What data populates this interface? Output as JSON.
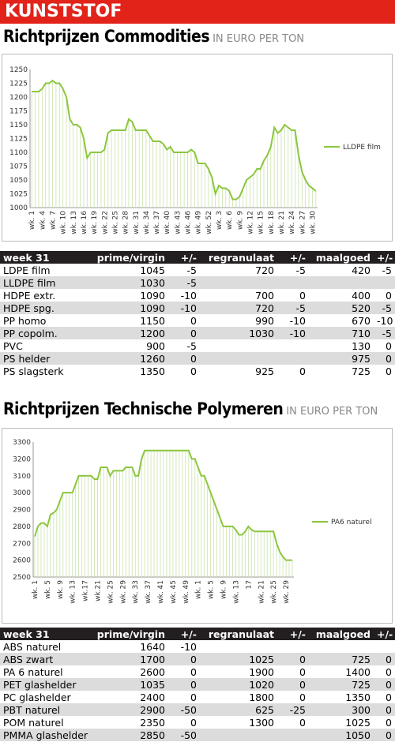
{
  "header": {
    "title": "KUNSTSTOF"
  },
  "sections": [
    {
      "title": "Richtprijzen Commodities",
      "unit": "IN EURO PER TON"
    },
    {
      "title": "Richtprijzen Technische Polymeren",
      "unit": "IN EURO PER TON"
    }
  ],
  "chart_data": [
    {
      "type": "line",
      "legend": "right",
      "grid": false,
      "categories": [
        "wk. 1",
        null,
        null,
        "wk. 4",
        null,
        null,
        "wk. 7",
        null,
        null,
        "wk. 10",
        null,
        null,
        "wk. 13",
        null,
        null,
        "wk. 16",
        null,
        null,
        "wk. 19",
        null,
        null,
        "wk. 22",
        null,
        null,
        "wk. 25",
        null,
        null,
        "wk. 28",
        null,
        null,
        "wk. 31",
        null,
        null,
        "wk. 34",
        null,
        null,
        "wk. 37",
        null,
        null,
        "wk. 40",
        null,
        null,
        "wk. 43",
        null,
        null,
        "wk. 46",
        null,
        null,
        "wk. 49",
        null,
        null,
        "wk. 52",
        null,
        null,
        "wk. 3",
        null,
        null,
        "wk. 6",
        null,
        null,
        "wk. 9",
        null,
        null,
        "wk. 12",
        null,
        null,
        "wk. 15",
        null,
        null,
        "wk. 18",
        null,
        null,
        "wk. 21",
        null,
        null,
        "wk. 24",
        null,
        null,
        "wk. 27",
        null,
        null,
        "wk. 30",
        null
      ],
      "series": [
        {
          "name": "LLDPE film",
          "color": "#8cc63e",
          "values": [
            1210,
            1210,
            1210,
            1215,
            1225,
            1225,
            1230,
            1225,
            1225,
            1215,
            1200,
            1160,
            1150,
            1150,
            1145,
            1125,
            1090,
            1100,
            1100,
            1100,
            1100,
            1105,
            1135,
            1140,
            1140,
            1140,
            1140,
            1140,
            1160,
            1155,
            1140,
            1140,
            1140,
            1140,
            1130,
            1120,
            1120,
            1120,
            1115,
            1105,
            1110,
            1100,
            1100,
            1100,
            1100,
            1100,
            1105,
            1100,
            1080,
            1080,
            1080,
            1070,
            1055,
            1025,
            1040,
            1035,
            1035,
            1030,
            1015,
            1015,
            1020,
            1035,
            1050,
            1055,
            1060,
            1070,
            1070,
            1085,
            1095,
            1110,
            1145,
            1135,
            1140,
            1150,
            1145,
            1140,
            1140,
            1095,
            1065,
            1050,
            1040,
            1035,
            1030
          ]
        }
      ],
      "ylim": [
        1000,
        1250
      ],
      "yticks": [
        1000,
        1025,
        1050,
        1075,
        1100,
        1125,
        1150,
        1175,
        1200,
        1225,
        1250
      ]
    },
    {
      "type": "line",
      "legend": "right",
      "grid": false,
      "categories": [
        "wk. 1",
        null,
        null,
        null,
        "wk. 5",
        null,
        null,
        null,
        "wk. 9",
        null,
        null,
        null,
        "wk. 13",
        null,
        null,
        null,
        "wk.17",
        null,
        null,
        null,
        "wk.21",
        null,
        null,
        null,
        "wk. 25",
        null,
        null,
        null,
        "wk. 29",
        null,
        null,
        null,
        "wk. 33",
        null,
        null,
        null,
        "wk. 37",
        null,
        null,
        null,
        "wk. 41",
        null,
        null,
        null,
        "wk. 45",
        null,
        null,
        null,
        "wk. 49",
        null,
        null,
        null,
        "wk. 1",
        null,
        null,
        null,
        "wk. 5",
        null,
        null,
        null,
        "wk. 9",
        null,
        null,
        null,
        "wk. 13",
        null,
        null,
        null,
        "17",
        null,
        null,
        null,
        "wk. 21",
        null,
        null,
        null,
        "wk. 25",
        null,
        null,
        null,
        "wk. 29",
        null,
        null
      ],
      "series": [
        {
          "name": "PA6 naturel",
          "color": "#8cc63e",
          "values": [
            2740,
            2800,
            2820,
            2820,
            2800,
            2870,
            2880,
            2900,
            2950,
            3000,
            3000,
            3000,
            3000,
            3050,
            3100,
            3100,
            3100,
            3100,
            3100,
            3080,
            3080,
            3150,
            3150,
            3150,
            3100,
            3130,
            3130,
            3130,
            3130,
            3150,
            3150,
            3150,
            3100,
            3100,
            3200,
            3250,
            3250,
            3250,
            3250,
            3250,
            3250,
            3250,
            3250,
            3250,
            3250,
            3250,
            3250,
            3250,
            3250,
            3250,
            3200,
            3200,
            3150,
            3100,
            3100,
            3050,
            3000,
            2950,
            2900,
            2850,
            2800,
            2800,
            2800,
            2800,
            2780,
            2750,
            2750,
            2770,
            2800,
            2780,
            2770,
            2770,
            2770,
            2770,
            2770,
            2770,
            2770,
            2700,
            2650,
            2620,
            2600,
            2600,
            2600
          ]
        }
      ],
      "ylim": [
        2500,
        3300
      ],
      "yticks": [
        2500,
        2600,
        2700,
        2800,
        2900,
        3000,
        3100,
        3200,
        3300
      ]
    }
  ],
  "tables": [
    {
      "columns": [
        "week 31",
        "prime/virgin",
        "+/-",
        "regranulaat",
        "+/-",
        "maalgoed",
        "+/-"
      ],
      "rows": [
        [
          "LDPE film",
          1045,
          -5,
          720,
          -5,
          420,
          -5
        ],
        [
          "LLDPE film",
          1030,
          -5,
          null,
          null,
          null,
          null
        ],
        [
          "HDPE extr.",
          1090,
          -10,
          700,
          0,
          400,
          0
        ],
        [
          "HDPE spg.",
          1090,
          -10,
          720,
          -5,
          520,
          -5
        ],
        [
          "PP homo",
          1150,
          0,
          990,
          -10,
          670,
          -10
        ],
        [
          "PP copolm.",
          1200,
          0,
          1030,
          -10,
          710,
          -5
        ],
        [
          "PVC",
          900,
          -5,
          null,
          null,
          130,
          0
        ],
        [
          "PS helder",
          1260,
          0,
          null,
          null,
          975,
          0
        ],
        [
          "PS slagsterk",
          1350,
          0,
          925,
          0,
          725,
          0
        ]
      ]
    },
    {
      "columns": [
        "week 31",
        "prime/virgin",
        "+/-",
        "regranulaat",
        "+/-",
        "maalgoed",
        "+/-"
      ],
      "rows": [
        [
          "ABS naturel",
          1640,
          -10,
          null,
          null,
          null,
          null
        ],
        [
          "ABS zwart",
          1700,
          0,
          1025,
          0,
          725,
          0
        ],
        [
          "PA 6 naturel",
          2600,
          0,
          1900,
          0,
          1400,
          0
        ],
        [
          "PET glashelder",
          1035,
          0,
          1020,
          0,
          725,
          0
        ],
        [
          "PC glashelder",
          2400,
          0,
          1800,
          0,
          1350,
          0
        ],
        [
          "PBT naturel",
          2900,
          -50,
          625,
          -25,
          300,
          0
        ],
        [
          "POM naturel",
          2350,
          0,
          1300,
          0,
          1025,
          0
        ],
        [
          "PMMA glashelder",
          2850,
          -50,
          null,
          null,
          1050,
          0
        ]
      ]
    }
  ]
}
